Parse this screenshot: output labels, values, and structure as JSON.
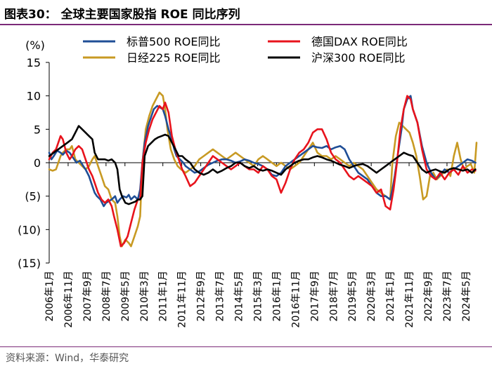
{
  "header": {
    "title": "图表30：  全球主要国家股指 ROE 同比序列"
  },
  "footer": {
    "source": "资料来源：Wind，华泰研究"
  },
  "chart_data": {
    "type": "line",
    "ylabel": "(%)",
    "ylim": [
      -15,
      15
    ],
    "yticks": [
      15,
      10,
      5,
      0,
      -5,
      -10,
      -15
    ],
    "ytick_labels": [
      "15",
      "10",
      "5",
      "0",
      "(5)",
      "(10)",
      "(15)"
    ],
    "xlim": [
      2006.0,
      2024.8
    ],
    "xticks": [
      2006.0,
      2006.833,
      2007.667,
      2008.5,
      2009.333,
      2010.167,
      2011.0,
      2011.833,
      2012.667,
      2013.5,
      2014.333,
      2015.167,
      2016.0,
      2016.833,
      2017.667,
      2018.5,
      2019.333,
      2020.167,
      2021.0,
      2021.833,
      2022.667,
      2023.5,
      2024.333
    ],
    "xtick_labels": [
      "2006年1月",
      "2006年11月",
      "2007年9月",
      "2008年7月",
      "2009年5月",
      "2010年3月",
      "2011年1月",
      "2011年11月",
      "2012年9月",
      "2013年7月",
      "2014年5月",
      "2015年3月",
      "2016年1月",
      "2016年11月",
      "2017年9月",
      "2018年7月",
      "2019年5月",
      "2020年3月",
      "2021年1月",
      "2021年11月",
      "2022年9月",
      "2023年7月",
      "2024年5月"
    ],
    "legend_position": "top",
    "grid": false,
    "series": [
      {
        "name": "标普500 ROE同比",
        "color": "#1f4e96",
        "x": [
          2006.0,
          2006.1,
          2006.2,
          2006.35,
          2006.5,
          2006.6,
          2006.75,
          2006.9,
          2007.0,
          2007.1,
          2007.2,
          2007.35,
          2007.5,
          2007.6,
          2007.75,
          2007.9,
          2008.0,
          2008.1,
          2008.25,
          2008.4,
          2008.5,
          2008.6,
          2008.75,
          2008.9,
          2009.0,
          2009.1,
          2009.25,
          2009.4,
          2009.5,
          2009.6,
          2009.75,
          2009.9,
          2010.0,
          2010.1,
          2010.2,
          2010.35,
          2010.5,
          2010.6,
          2010.75,
          2010.9,
          2011.0,
          2011.1,
          2011.25,
          2011.4,
          2011.5,
          2011.6,
          2011.75,
          2011.9,
          2012.0,
          2012.2,
          2012.4,
          2012.6,
          2012.8,
          2013.0,
          2013.2,
          2013.4,
          2013.6,
          2013.8,
          2014.0,
          2014.2,
          2014.4,
          2014.6,
          2014.8,
          2015.0,
          2015.2,
          2015.4,
          2015.6,
          2015.8,
          2016.0,
          2016.2,
          2016.4,
          2016.6,
          2016.8,
          2017.0,
          2017.2,
          2017.4,
          2017.6,
          2017.8,
          2018.0,
          2018.2,
          2018.4,
          2018.6,
          2018.8,
          2019.0,
          2019.2,
          2019.4,
          2019.6,
          2019.8,
          2020.0,
          2020.2,
          2020.4,
          2020.6,
          2020.8,
          2021.0,
          2021.1,
          2021.2,
          2021.35,
          2021.5,
          2021.6,
          2021.75,
          2021.9,
          2022.0,
          2022.2,
          2022.4,
          2022.6,
          2022.8,
          2023.0,
          2023.2,
          2023.4,
          2023.6,
          2023.8,
          2024.0,
          2024.2,
          2024.4,
          2024.6,
          2024.75
        ],
        "y": [
          1.5,
          0.5,
          1.0,
          1.8,
          1.5,
          1.2,
          1.8,
          1.5,
          1.0,
          0.5,
          0.0,
          0.3,
          -0.5,
          -1.0,
          -2.0,
          -3.5,
          -4.5,
          -5.0,
          -5.5,
          -6.5,
          -6.0,
          -5.8,
          -5.5,
          -5.0,
          -6.0,
          -5.5,
          -5.0,
          -5.2,
          -4.8,
          -5.5,
          -5.0,
          -5.5,
          -4.0,
          0.0,
          3.0,
          5.5,
          7.0,
          8.0,
          8.5,
          8.2,
          8.0,
          7.0,
          5.0,
          3.5,
          2.0,
          1.0,
          0.5,
          0.0,
          -0.5,
          -1.0,
          -1.5,
          -1.3,
          -0.8,
          -0.3,
          0.0,
          0.3,
          0.5,
          0.5,
          0.3,
          0.0,
          0.2,
          0.5,
          0.3,
          0.0,
          -0.2,
          -0.5,
          -1.0,
          -1.8,
          -2.0,
          -1.5,
          -0.5,
          0.0,
          0.5,
          1.0,
          1.5,
          2.0,
          2.5,
          2.3,
          2.2,
          2.5,
          2.0,
          2.3,
          2.5,
          2.0,
          0.5,
          -0.5,
          -1.5,
          -2.0,
          -2.5,
          -3.5,
          -4.5,
          -5.0,
          -5.0,
          -5.5,
          -4.0,
          -2.0,
          1.5,
          5.0,
          8.0,
          9.5,
          10.0,
          8.0,
          6.0,
          2.5,
          0.0,
          -1.5,
          -2.5,
          -1.8,
          -1.0,
          -1.5,
          -1.0,
          -0.5,
          0.0,
          0.5,
          0.3,
          0.0
        ]
      },
      {
        "name": "德国DAX ROE同比",
        "color": "#e8131c",
        "x": [
          2006.0,
          2006.15,
          2006.3,
          2006.5,
          2006.6,
          2006.75,
          2006.9,
          2007.0,
          2007.15,
          2007.3,
          2007.45,
          2007.6,
          2007.75,
          2007.9,
          2008.0,
          2008.15,
          2008.3,
          2008.45,
          2008.6,
          2008.75,
          2008.85,
          2009.0,
          2009.15,
          2009.3,
          2009.45,
          2009.6,
          2009.75,
          2009.9,
          2010.0,
          2010.1,
          2010.25,
          2010.4,
          2010.55,
          2010.7,
          2010.85,
          2011.0,
          2011.1,
          2011.25,
          2011.4,
          2011.55,
          2011.7,
          2011.85,
          2012.0,
          2012.2,
          2012.4,
          2012.6,
          2012.8,
          2013.0,
          2013.2,
          2013.4,
          2013.6,
          2013.8,
          2014.0,
          2014.2,
          2014.4,
          2014.6,
          2014.8,
          2015.0,
          2015.2,
          2015.4,
          2015.6,
          2015.8,
          2016.0,
          2016.2,
          2016.4,
          2016.6,
          2016.8,
          2017.0,
          2017.2,
          2017.4,
          2017.6,
          2017.8,
          2018.0,
          2018.2,
          2018.4,
          2018.6,
          2018.8,
          2019.0,
          2019.2,
          2019.4,
          2019.6,
          2019.8,
          2020.0,
          2020.2,
          2020.4,
          2020.6,
          2020.8,
          2021.0,
          2021.15,
          2021.3,
          2021.45,
          2021.6,
          2021.75,
          2021.9,
          2022.0,
          2022.2,
          2022.4,
          2022.6,
          2022.8,
          2023.0,
          2023.2,
          2023.4,
          2023.6,
          2023.8,
          2024.0,
          2024.2,
          2024.4,
          2024.6,
          2024.75
        ],
        "y": [
          0.5,
          1.5,
          2.0,
          4.0,
          3.5,
          1.5,
          0.5,
          1.0,
          2.0,
          2.5,
          2.0,
          0.5,
          -1.0,
          -2.0,
          -3.0,
          -4.5,
          -5.5,
          -6.0,
          -5.5,
          -6.5,
          -8.0,
          -10.0,
          -12.5,
          -12.0,
          -11.0,
          -9.0,
          -7.0,
          -5.5,
          -5.5,
          0.0,
          3.0,
          5.0,
          6.5,
          7.5,
          8.5,
          8.0,
          9.0,
          7.5,
          4.0,
          2.0,
          0.5,
          -1.0,
          -2.0,
          -3.5,
          -3.0,
          -2.0,
          -1.0,
          0.0,
          1.0,
          0.5,
          0.0,
          -0.5,
          -1.0,
          -0.5,
          0.0,
          -0.5,
          -1.0,
          -1.0,
          -1.5,
          -0.5,
          -1.0,
          -2.0,
          -2.5,
          -4.5,
          -3.0,
          -1.0,
          0.5,
          1.5,
          2.0,
          3.0,
          4.5,
          5.0,
          5.0,
          3.5,
          1.5,
          0.5,
          0.0,
          -1.0,
          -2.0,
          -2.5,
          -2.0,
          -2.5,
          -3.0,
          -3.5,
          -4.5,
          -4.0,
          -6.5,
          -7.0,
          -4.0,
          0.0,
          5.0,
          8.0,
          10.0,
          9.5,
          8.0,
          6.0,
          2.0,
          -1.0,
          -2.0,
          -2.5,
          -1.5,
          -2.5,
          -1.5,
          -1.0,
          -1.8,
          -0.5,
          -1.5,
          -1.0,
          -1.2
        ]
      },
      {
        "name": "日经225 ROE同比",
        "color": "#c89a23",
        "x": [
          2006.0,
          2006.15,
          2006.3,
          2006.5,
          2006.6,
          2006.75,
          2006.9,
          2007.0,
          2007.15,
          2007.3,
          2007.45,
          2007.6,
          2007.75,
          2007.9,
          2008.0,
          2008.15,
          2008.3,
          2008.45,
          2008.6,
          2008.75,
          2008.9,
          2009.0,
          2009.1,
          2009.2,
          2009.35,
          2009.5,
          2009.6,
          2009.75,
          2009.9,
          2010.0,
          2010.1,
          2010.25,
          2010.4,
          2010.55,
          2010.7,
          2010.85,
          2011.0,
          2011.1,
          2011.2,
          2011.35,
          2011.5,
          2011.65,
          2011.8,
          2012.0,
          2012.2,
          2012.4,
          2012.6,
          2012.8,
          2013.0,
          2013.2,
          2013.4,
          2013.6,
          2013.8,
          2014.0,
          2014.2,
          2014.4,
          2014.6,
          2014.8,
          2015.0,
          2015.2,
          2015.4,
          2015.6,
          2015.8,
          2016.0,
          2016.2,
          2016.4,
          2016.6,
          2016.8,
          2017.0,
          2017.2,
          2017.4,
          2017.6,
          2017.8,
          2018.0,
          2018.2,
          2018.4,
          2018.6,
          2018.8,
          2019.0,
          2019.2,
          2019.4,
          2019.6,
          2019.8,
          2020.0,
          2020.2,
          2020.4,
          2020.6,
          2020.8,
          2021.0,
          2021.1,
          2021.25,
          2021.4,
          2021.55,
          2021.7,
          2021.85,
          2022.0,
          2022.15,
          2022.3,
          2022.45,
          2022.6,
          2022.75,
          2022.9,
          2023.05,
          2023.2,
          2023.35,
          2023.5,
          2023.65,
          2023.8,
          2023.95,
          2024.1,
          2024.25,
          2024.4,
          2024.55,
          2024.7,
          2024.8
        ],
        "y": [
          -1.0,
          -1.2,
          -1.0,
          1.0,
          1.5,
          2.0,
          2.0,
          2.5,
          0.5,
          0.0,
          -0.5,
          -1.0,
          -0.5,
          0.5,
          1.0,
          -0.5,
          -2.0,
          -3.5,
          -4.0,
          -5.5,
          -6.0,
          -8.0,
          -11.0,
          -12.5,
          -11.5,
          -12.0,
          -12.5,
          -11.0,
          -9.5,
          -8.0,
          0.0,
          5.0,
          7.0,
          8.5,
          9.5,
          10.5,
          10.0,
          8.0,
          5.0,
          2.0,
          0.5,
          -0.5,
          -1.0,
          -1.5,
          -1.0,
          -0.5,
          0.5,
          1.0,
          1.5,
          2.0,
          1.5,
          1.0,
          0.5,
          1.0,
          1.5,
          1.0,
          0.5,
          0.0,
          -0.5,
          0.5,
          1.0,
          0.5,
          0.0,
          -0.5,
          0.0,
          -0.5,
          -1.0,
          -0.5,
          0.0,
          1.0,
          2.0,
          3.0,
          1.5,
          1.0,
          1.0,
          0.5,
          1.0,
          0.5,
          0.0,
          -0.5,
          0.0,
          -0.5,
          -1.0,
          -2.0,
          -3.0,
          -4.0,
          -4.5,
          -5.0,
          -5.5,
          0.0,
          4.0,
          6.0,
          5.5,
          5.0,
          4.5,
          3.0,
          1.0,
          -2.0,
          -5.5,
          -5.0,
          -2.0,
          -1.5,
          -2.5,
          -2.0,
          -1.5,
          -1.0,
          -2.0,
          1.0,
          3.0,
          0.5,
          -1.0,
          -0.5,
          -0.2,
          -1.5,
          3.0
        ]
      },
      {
        "name": "沪深300 ROE同比",
        "color": "#000000",
        "x": [
          2006.0,
          2006.2,
          2006.4,
          2006.6,
          2006.8,
          2007.0,
          2007.15,
          2007.3,
          2007.45,
          2007.6,
          2007.75,
          2007.9,
          2008.0,
          2008.15,
          2008.3,
          2008.45,
          2008.6,
          2008.75,
          2008.9,
          2009.0,
          2009.1,
          2009.2,
          2009.35,
          2009.5,
          2009.65,
          2009.8,
          2009.9,
          2010.0,
          2010.1,
          2010.2,
          2010.35,
          2010.5,
          2010.65,
          2010.8,
          2010.95,
          2011.1,
          2011.25,
          2011.4,
          2011.55,
          2011.7,
          2011.85,
          2012.0,
          2012.2,
          2012.4,
          2012.6,
          2012.8,
          2013.0,
          2013.2,
          2013.4,
          2013.6,
          2013.8,
          2014.0,
          2014.2,
          2014.4,
          2014.6,
          2014.8,
          2015.0,
          2015.2,
          2015.4,
          2015.6,
          2015.8,
          2016.0,
          2016.2,
          2016.4,
          2016.6,
          2016.8,
          2017.0,
          2017.2,
          2017.4,
          2017.6,
          2017.8,
          2018.0,
          2018.2,
          2018.4,
          2018.6,
          2018.8,
          2019.0,
          2019.2,
          2019.4,
          2019.6,
          2019.8,
          2020.0,
          2020.2,
          2020.4,
          2020.6,
          2020.8,
          2021.0,
          2021.2,
          2021.4,
          2021.6,
          2021.8,
          2022.0,
          2022.2,
          2022.4,
          2022.6,
          2022.8,
          2023.0,
          2023.2,
          2023.4,
          2023.6,
          2023.8,
          2024.0,
          2024.2,
          2024.4,
          2024.6,
          2024.75
        ],
        "y": [
          1.0,
          1.5,
          2.0,
          2.5,
          3.0,
          3.5,
          4.5,
          5.5,
          5.0,
          4.5,
          4.0,
          3.5,
          1.5,
          0.5,
          0.5,
          0.5,
          0.3,
          0.5,
          0.0,
          -1.0,
          -4.0,
          -5.0,
          -6.0,
          -6.2,
          -6.0,
          -5.8,
          -5.5,
          -5.5,
          -5.0,
          1.0,
          2.5,
          3.0,
          3.5,
          3.8,
          4.0,
          4.2,
          4.0,
          3.0,
          2.0,
          1.0,
          1.0,
          0.5,
          0.0,
          -1.0,
          -1.5,
          -1.8,
          -1.5,
          -1.0,
          -1.5,
          -1.2,
          -0.8,
          -0.5,
          0.0,
          0.0,
          -0.5,
          -0.8,
          -0.5,
          -1.0,
          -1.2,
          -1.0,
          -1.2,
          -1.5,
          -1.8,
          -1.0,
          -0.5,
          0.0,
          0.3,
          0.5,
          0.5,
          0.8,
          1.0,
          0.8,
          0.5,
          0.3,
          0.0,
          -0.3,
          -0.5,
          -0.8,
          -0.5,
          -0.3,
          -0.2,
          -0.5,
          -1.0,
          -1.5,
          -1.0,
          -0.5,
          0.0,
          0.5,
          1.0,
          1.5,
          1.2,
          1.0,
          0.0,
          -1.0,
          -1.5,
          -1.2,
          -1.0,
          -1.3,
          -1.5,
          -1.0,
          -0.8,
          -1.0,
          -1.2,
          -1.0,
          -1.5,
          -1.0
        ]
      }
    ]
  }
}
